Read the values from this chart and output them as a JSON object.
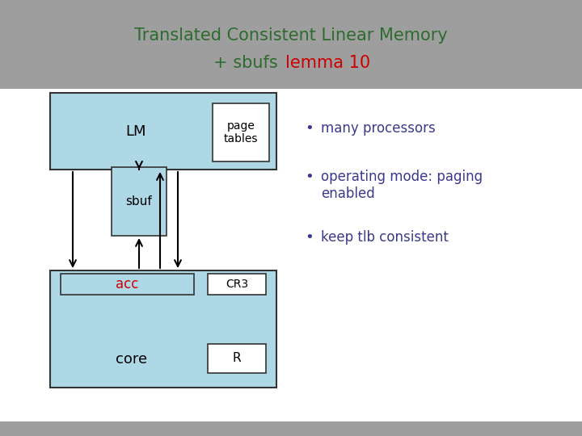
{
  "title_part1": "Translated Consistent Linear Memory",
  "title_part2": "+ sbufs ",
  "title_part3": "lemma 10",
  "title_bg_color": "#9e9e9e",
  "title_text_color": "#2e6b2e",
  "title_red_color": "#cc0000",
  "box_fill_color": "#aed8e6",
  "box_edge_color": "#333333",
  "bullet_color": "#3a3a8c",
  "bullet_points": [
    "many processors",
    "operating mode: paging\nenabled",
    "keep tlb consistent"
  ],
  "acc_label_color": "#cc0000",
  "white": "#ffffff",
  "bg_white": "#ffffff",
  "bottom_bar_color": "#9e9e9e"
}
